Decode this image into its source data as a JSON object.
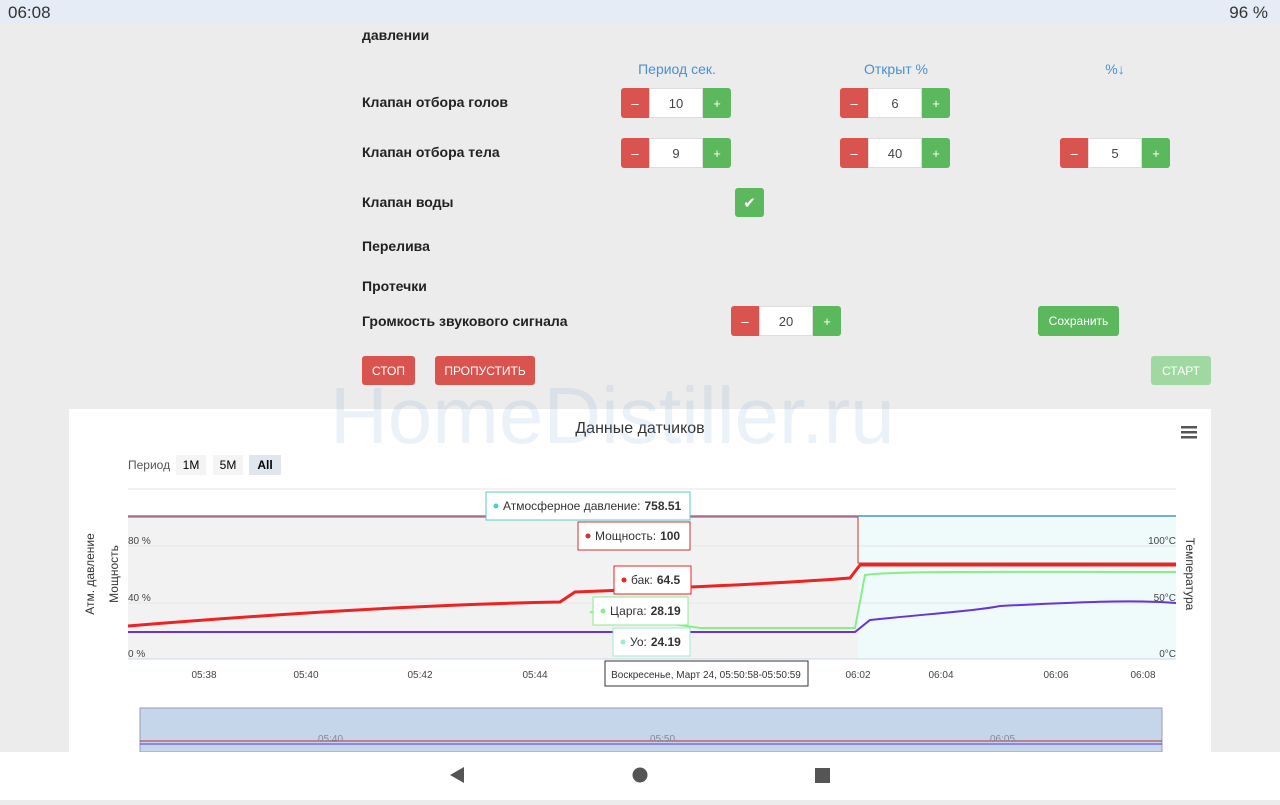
{
  "status_bar": {
    "time": "06:08",
    "battery": "96 %"
  },
  "form": {
    "section_tail": "давлении",
    "columns": [
      "Период сек.",
      "Открыт %",
      "%↓"
    ],
    "minus": "–",
    "plus": "+",
    "check": "✔",
    "rows": [
      {
        "label": "Клапан отбора голов",
        "period": 10,
        "open": 6
      },
      {
        "label": "Клапан отбора тела",
        "period": 9,
        "open": 40,
        "drop": 5
      },
      {
        "label": "Клапан воды"
      },
      {
        "label": "Перелива"
      },
      {
        "label": "Протечки"
      },
      {
        "label": "Громкость звукового сигнала",
        "value": 20
      }
    ],
    "save": "Сохранить",
    "stop": "СТОП",
    "skip": "ПРОПУСТИТЬ",
    "start": "СТАРТ"
  },
  "watermark": "HomeDistiller.ru",
  "chart": {
    "title": "Данные датчиков",
    "period_label": "Период",
    "periods": [
      "1M",
      "5M",
      "All"
    ],
    "left_axis_titles": [
      "Атм. давление",
      "Мощность"
    ],
    "right_axis_title": "Температура",
    "left_ticks": [
      "80 %",
      "40 %",
      "0 %"
    ],
    "right_ticks": [
      "100°C",
      "50°C",
      "0°C"
    ],
    "x_ticks": [
      "05:38",
      "05:40",
      "05:42",
      "05:44",
      "06:02",
      "06:04",
      "06:06",
      "06:08"
    ],
    "tooltips": [
      {
        "name": "Атмосферное давление:",
        "value": 758.51
      },
      {
        "name": "Мощность:",
        "value": 100
      },
      {
        "name": "бак:",
        "value": 64.5
      },
      {
        "name": "Царга:",
        "value": 28.19
      },
      {
        "name": "Уо:",
        "value": 24.19
      }
    ],
    "tooltip_time": "Воскресенье, Март 24, 05:50:58-05:50:59",
    "navigator_ticks": [
      "05:40",
      "05:50",
      "06:05"
    ]
  }
}
